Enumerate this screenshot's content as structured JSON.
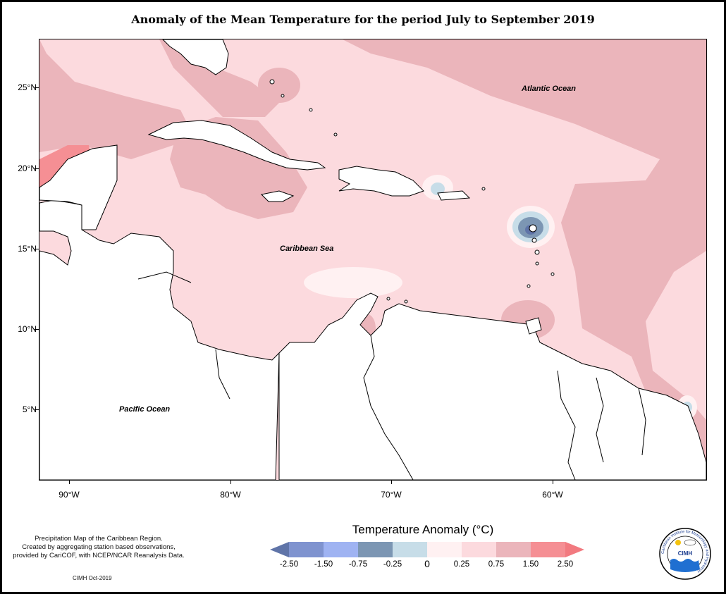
{
  "title": "Anomaly of the Mean Temperature for the period July to September 2019",
  "axes": {
    "y_ticks": [
      "25°N",
      "20°N",
      "15°N",
      "10°N",
      "5°N"
    ],
    "x_ticks": [
      "90°W",
      "80°W",
      "70°W",
      "60°W"
    ]
  },
  "map_labels": {
    "atlantic": "Atlantic Ocean",
    "caribbean": "Caribbean Sea",
    "pacific": "Pacific Ocean"
  },
  "footnote": {
    "line1": "Precipitation Map of the Caribbean Region.",
    "line2": "Created by aggregating station based observations,",
    "line3": "provided by CariCOF, with NCEP/NCAR Reanalysis Data.",
    "credit": "CIMH Oct-2019"
  },
  "legend": {
    "title": "Temperature Anomaly (°C)",
    "labels": [
      "-2.50",
      "-1.50",
      "-0.75",
      "-0.25",
      "0",
      "0.25",
      "0.75",
      "1.50",
      "2.50"
    ],
    "colors": {
      "below_-2.50": "#5f74a8",
      "-2.50_-1.50": "#7f93cf",
      "-1.50_-0.75": "#9fb3f2",
      "-0.75_-0.25": "#7c96b3",
      "-0.25_0": "#c7dde8",
      "0_0.25": "#fff1f2",
      "0.25_0.75": "#fcdade",
      "0.75_1.50": "#ebb5bb",
      "1.50_2.50": "#f58f94",
      "above_2.50": "#f27a80"
    }
  },
  "logo": {
    "ring_text": "Caribbean Institute for Meteorology and Hydrology",
    "acronym": "CIMH"
  }
}
